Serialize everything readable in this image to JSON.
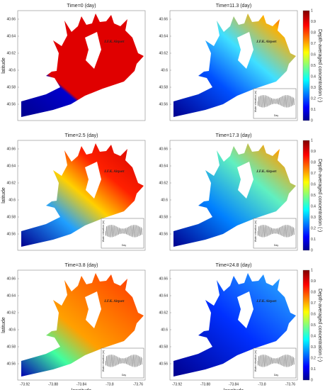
{
  "panels": [
    {
      "title": "Time=0 (day)"
    },
    {
      "title": "Time=11.3 (day)"
    },
    {
      "title": "Time=2.5 (day)"
    },
    {
      "title": "Time=17.3 (day)"
    },
    {
      "title": "Time=3.8 (day)"
    },
    {
      "title": "Time=24.8 (day)"
    }
  ],
  "y_axis": {
    "label": "latitude",
    "ticks": [
      "40.66",
      "40.64",
      "40.62",
      "40.6",
      "40.58",
      "40.56"
    ]
  },
  "x_axis": {
    "label": "longitude",
    "ticks": [
      "-73.92",
      "-73.88",
      "-73.84",
      "-73.8",
      "-73.76"
    ]
  },
  "colorbar": {
    "label": "Depth-averaged concentration (-)",
    "ticks": [
      "0",
      "0.1",
      "0.2",
      "0.3",
      "0.4",
      "0.5",
      "0.6",
      "0.7",
      "0.8",
      "0.9",
      "1"
    ]
  },
  "annotation": "J.F.K. Airport",
  "inset": {
    "y_label": "Water elevation (m)",
    "x_label": "Day"
  }
}
